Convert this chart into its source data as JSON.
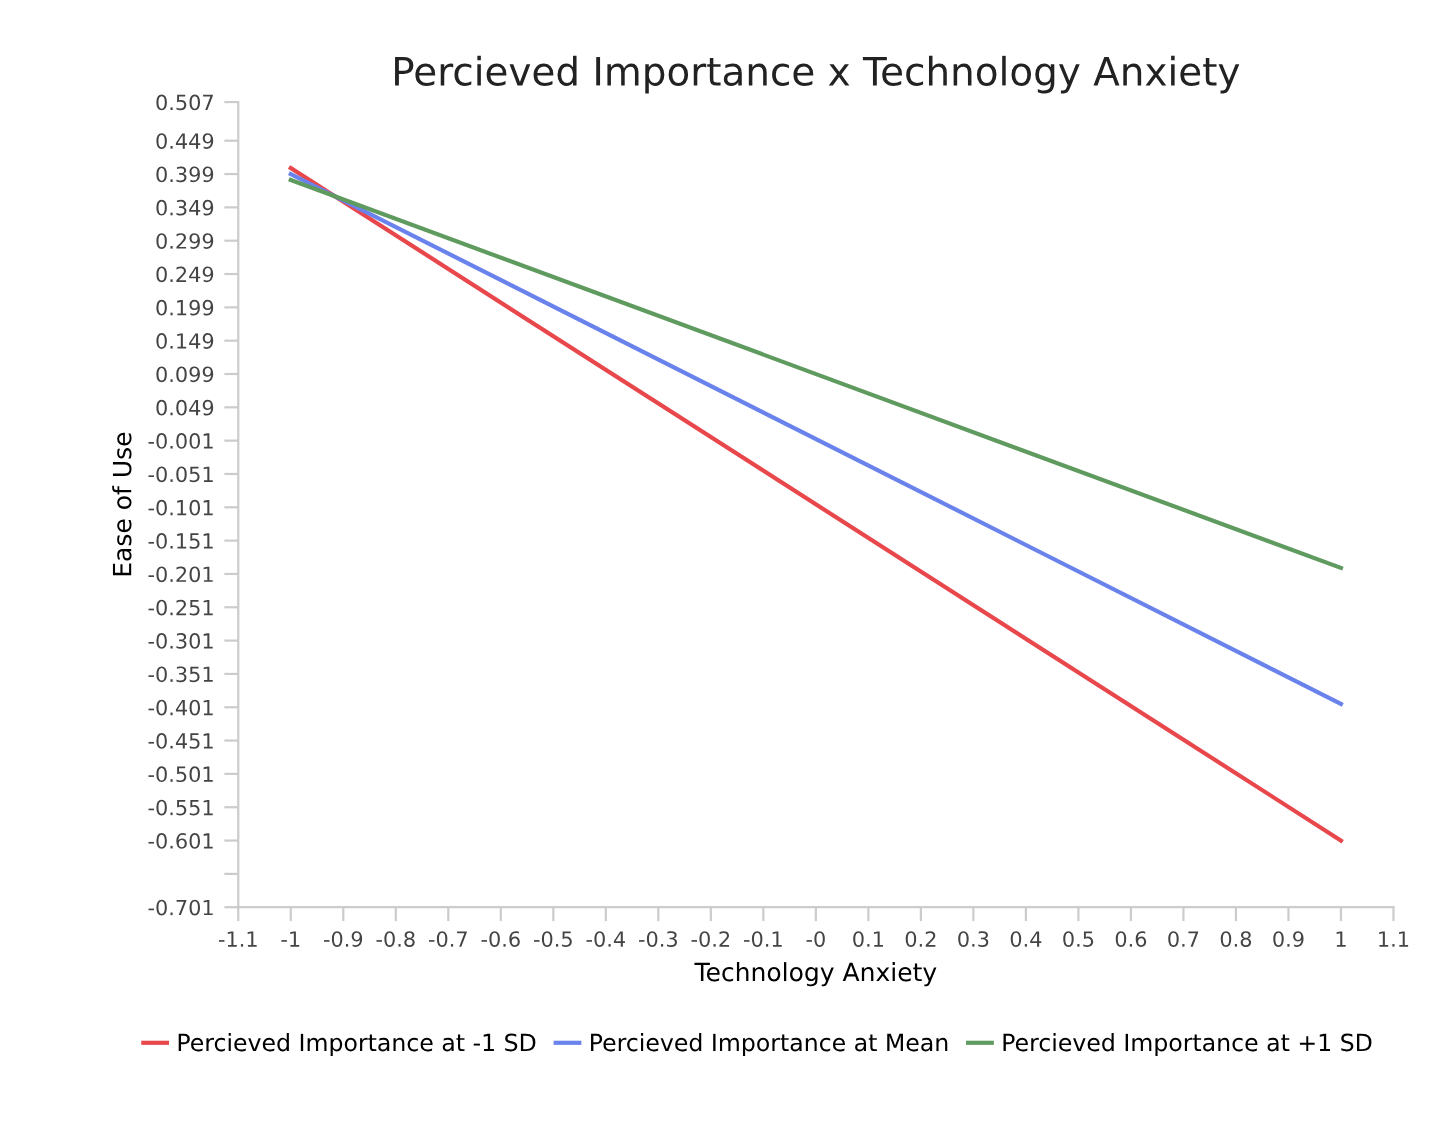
{
  "chart_data": {
    "type": "line",
    "title": "Percieved Importance x Technology Anxiety",
    "xlabel": "Technology Anxiety",
    "ylabel": "Ease of Use",
    "x": [
      -1,
      1
    ],
    "series": [
      {
        "name": "Percieved Importance at -1 SD",
        "color": "#e8474c",
        "values": [
          0.408,
          -0.601
        ]
      },
      {
        "name": "Percieved Importance at Mean",
        "color": "#6a83ec",
        "values": [
          0.399,
          -0.396
        ]
      },
      {
        "name": "Percieved Importance at +1 SD",
        "color": "#5f9a5f",
        "values": [
          0.39,
          -0.192
        ]
      }
    ],
    "xlim": [
      -1.1,
      1.1
    ],
    "xticks": [
      -1.1,
      -1,
      -0.9,
      -0.8,
      -0.7,
      -0.6,
      -0.5,
      -0.4,
      -0.3,
      -0.2,
      -0.1,
      {
        "value": 0,
        "label": "-0"
      },
      0.1,
      0.2,
      0.3,
      0.4,
      0.5,
      0.6,
      0.7,
      0.8,
      0.9,
      1,
      1.1
    ],
    "ylim": [
      -0.701,
      0.507
    ],
    "yticks": [
      0.507,
      0.449,
      0.399,
      0.349,
      0.299,
      0.249,
      0.199,
      0.149,
      0.099,
      0.049,
      -0.001,
      -0.051,
      -0.101,
      -0.151,
      -0.201,
      -0.251,
      -0.301,
      -0.351,
      -0.401,
      -0.451,
      -0.501,
      -0.551,
      -0.601,
      {
        "value": -0.651,
        "label": null
      },
      -0.701
    ],
    "grid": false,
    "legend": "bottom",
    "marker": "none",
    "line_style": "solid"
  }
}
